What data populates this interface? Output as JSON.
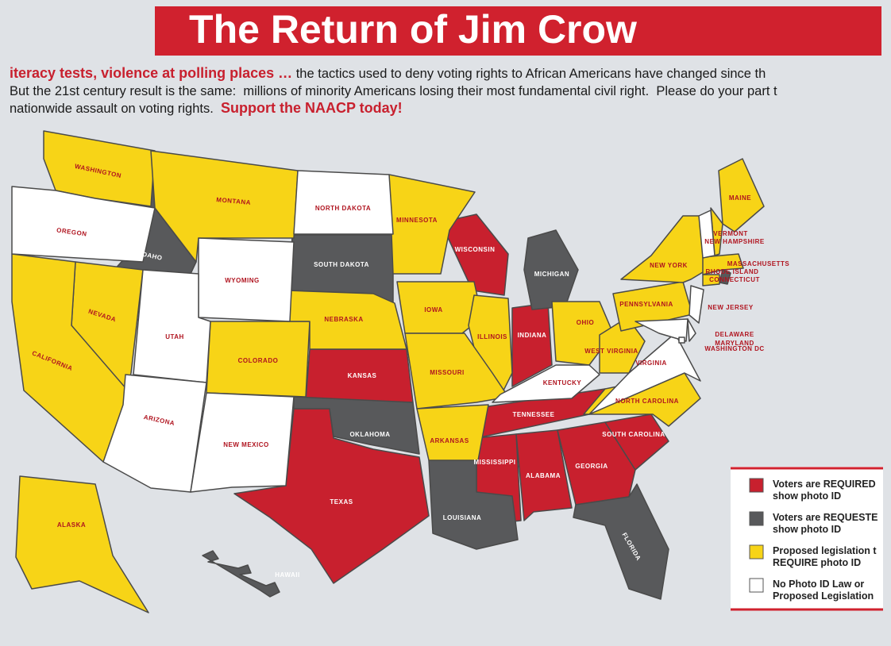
{
  "header": {
    "title": "The Return of Jim Crow"
  },
  "intro": [
    [
      {
        "text": "iteracy tests, violence at polling places …",
        "highlight": true
      },
      {
        "text": " the tactics used to deny voting rights to African Americans have changed since th",
        "highlight": false
      }
    ],
    [
      {
        "text": "But the 21st century result is the same:  millions of minority Americans losing their most fundamental civil right.  Please do your part t",
        "highlight": false
      }
    ],
    [
      {
        "text": "nationwide assault on voting rights.  ",
        "highlight": false
      },
      {
        "text": "Support the NAACP today!",
        "highlight": true
      }
    ]
  ],
  "legend": [
    {
      "color": "#c8202e",
      "lines": [
        "Voters are REQUIRED",
        "show photo ID"
      ],
      "states": [
        "WISCONSIN",
        "INDIANA",
        "KANSAS",
        "TEXAS",
        "TENNESSEE",
        "MISSISSIPPI",
        "ALABAMA",
        "GEORGIA",
        "SOUTH CAROLINA"
      ]
    },
    {
      "color": "#58595b",
      "lines": [
        "Voters are REQUESTE",
        "show photo ID"
      ],
      "states": [
        "IDAHO",
        "SOUTH DAKOTA",
        "MICHIGAN",
        "OKLAHOMA",
        "LOUISIANA",
        "FLORIDA",
        "HAWAII",
        "RHODE ISLAND"
      ]
    },
    {
      "color": "#f7d417",
      "lines": [
        "Proposed legislation t",
        "REQUIRE photo ID"
      ],
      "states": [
        "WASHINGTON",
        "MONTANA",
        "MINNESOTA",
        "NEVADA",
        "CALIFORNIA",
        "COLORADO",
        "NEBRASKA",
        "IOWA",
        "ILLINOIS",
        "MISSOURI",
        "ARKANSAS",
        "OHIO",
        "WEST VIRGINIA",
        "PENNSYLVANIA",
        "NEW YORK",
        "NORTH CAROLINA",
        "MAINE",
        "ALASKA",
        "NEW HAMPSHIRE",
        "MASSACHUSETTS",
        "CONNECTICUT"
      ]
    },
    {
      "color": "#ffffff",
      "lines": [
        "No Photo ID Law or",
        "Proposed Legislation"
      ],
      "states": [
        "OREGON",
        "NORTH DAKOTA",
        "WYOMING",
        "UTAH",
        "ARIZONA",
        "NEW MEXICO",
        "KENTUCKY",
        "VIRGINIA",
        "NEW JERSEY",
        "DELAWARE",
        "MARYLAND",
        "WASHINGTON DC",
        "VERMONT"
      ]
    }
  ]
}
